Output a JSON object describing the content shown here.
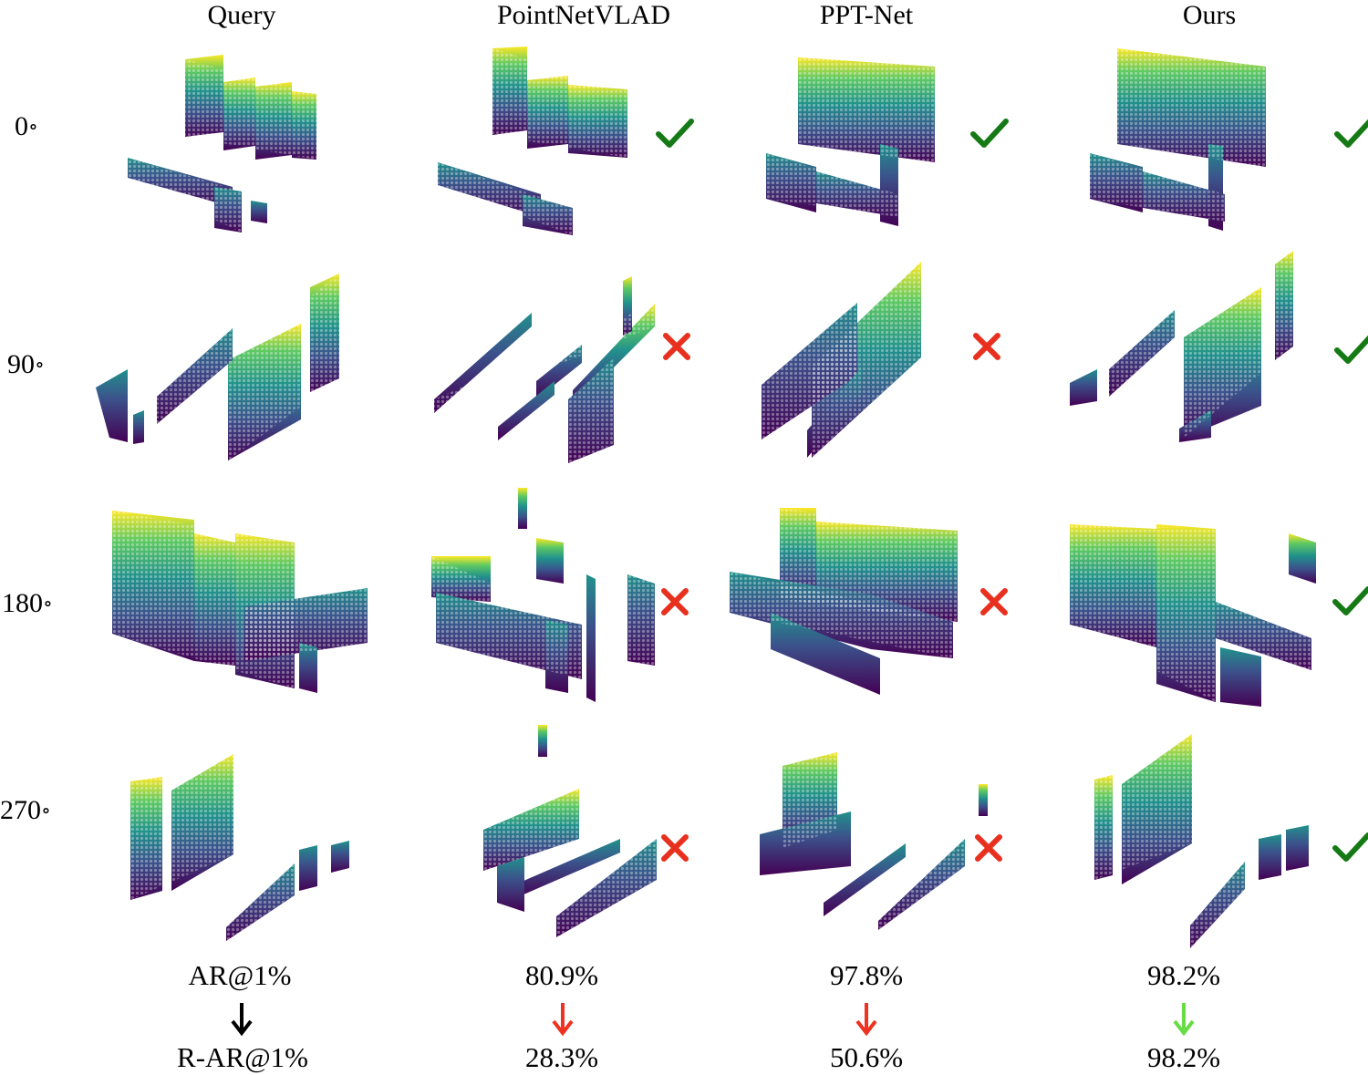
{
  "columns": [
    "Query",
    "PointNetVLAD",
    "PPT-Net",
    "Ours"
  ],
  "rows": [
    {
      "angle": "0",
      "degree_symbol": "∘"
    },
    {
      "angle": "90",
      "degree_symbol": "∘"
    },
    {
      "angle": "180",
      "degree_symbol": "∘"
    },
    {
      "angle": "270",
      "degree_symbol": "∘"
    }
  ],
  "results": [
    [
      "check",
      "check",
      "check"
    ],
    [
      "cross",
      "cross",
      "check"
    ],
    [
      "cross",
      "cross",
      "check"
    ],
    [
      "cross",
      "cross",
      "check"
    ]
  ],
  "metrics": {
    "ar_label": "AR@1%",
    "rar_label": "R-AR@1%",
    "ar_values": [
      "80.9%",
      "97.8%",
      "98.2%"
    ],
    "rar_values": [
      "28.3%",
      "50.6%",
      "98.2%"
    ],
    "arrow_colors": [
      "#000000",
      "#ee3322",
      "#ee3322",
      "#66dd44"
    ]
  },
  "colors": {
    "check": "#157a15",
    "cross": "#e8301f",
    "viridis_low": "#440154",
    "viridis_mid": "#21918c",
    "viridis_high": "#fde725"
  }
}
